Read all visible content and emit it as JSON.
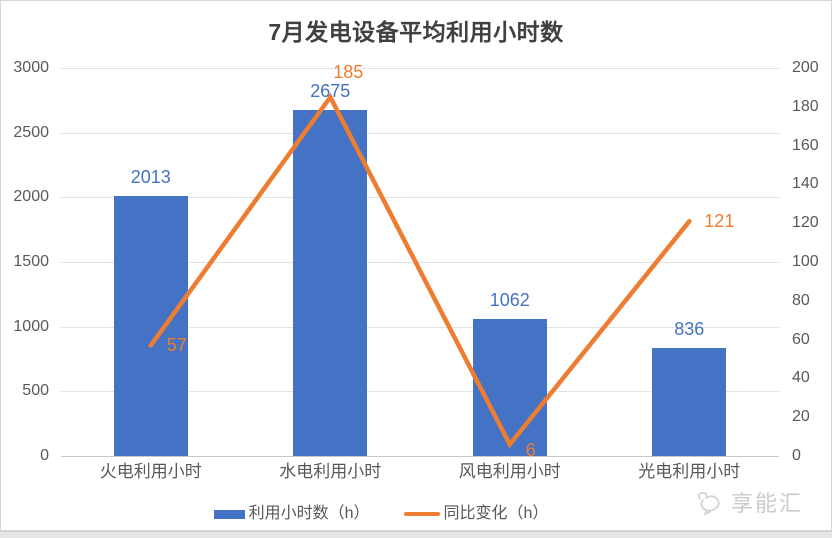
{
  "title": "7月发电设备平均利用小时数",
  "watermark": {
    "text": "享能汇"
  },
  "legend": [
    {
      "label": "利用小时数（h）",
      "type": "bar",
      "color": "#4472C4"
    },
    {
      "label": "同比变化（h）",
      "type": "line",
      "color": "#ED7D31"
    }
  ],
  "colors": {
    "bar": "#4472C4",
    "line": "#ED7D31",
    "tick_text": "#595959",
    "title_text": "#404040",
    "gridline": "#E3E3E3"
  },
  "chart_data": {
    "type": "bar",
    "subtype": "bar-line-combo",
    "title": "7月发电设备平均利用小时数",
    "categories": [
      "火电利用小时",
      "水电利用小时",
      "风电利用小时",
      "光电利用小时"
    ],
    "series": [
      {
        "name": "利用小时数（h）",
        "type": "bar",
        "axis": "left",
        "color": "#4472C4",
        "values": [
          2013,
          2675,
          1062,
          836
        ]
      },
      {
        "name": "同比变化（h）",
        "type": "line",
        "axis": "right",
        "color": "#ED7D31",
        "values": [
          57,
          185,
          6,
          121
        ]
      }
    ],
    "left_axis": {
      "min": 0,
      "max": 3000,
      "step": 500,
      "ticks": [
        3000,
        2500,
        2000,
        1500,
        1000,
        500,
        0
      ]
    },
    "right_axis": {
      "min": 0,
      "max": 200,
      "step": 20,
      "ticks": [
        200,
        180,
        160,
        140,
        120,
        100,
        80,
        60,
        40,
        20,
        0
      ]
    },
    "grid": true,
    "legend_position": "bottom",
    "data_labels": true
  }
}
